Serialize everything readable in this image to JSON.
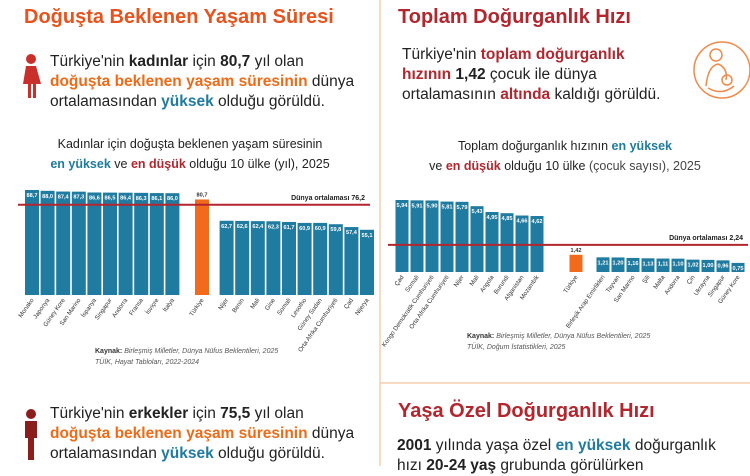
{
  "left": {
    "title": "Doğuşta Beklenen Yaşam Süresi",
    "paragraph": [
      [
        {
          "text": "Türkiye'nin ",
          "style": "plain"
        },
        {
          "text": "kadınlar",
          "style": "bold"
        },
        {
          "text": " için ",
          "style": "plain"
        },
        {
          "text": "80,7",
          "style": "bold"
        },
        {
          "text": " yıl olan",
          "style": "plain"
        }
      ],
      [
        {
          "text": "doğuşta beklenen yaşam süresinin",
          "style": "orange"
        },
        {
          "text": " dünya",
          "style": "plain"
        }
      ],
      [
        {
          "text": "ortalamasından ",
          "style": "plain"
        },
        {
          "text": "yüksek",
          "style": "blue"
        },
        {
          "text": " olduğu görüldü.",
          "style": "plain"
        }
      ]
    ],
    "bottom_paragraph": [
      [
        {
          "text": "Türkiye'nin ",
          "style": "plain"
        },
        {
          "text": "erkekler",
          "style": "bold"
        },
        {
          "text": " için ",
          "style": "plain"
        },
        {
          "text": "75,5",
          "style": "bold"
        },
        {
          "text": " yıl olan",
          "style": "plain"
        }
      ],
      [
        {
          "text": "doğuşta beklenen yaşam süresinin",
          "style": "orange"
        },
        {
          "text": " dünya",
          "style": "plain"
        }
      ],
      [
        {
          "text": "ortalamasından ",
          "style": "plain"
        },
        {
          "text": "yüksek",
          "style": "blue"
        },
        {
          "text": " olduğu görüldü.",
          "style": "plain"
        }
      ]
    ]
  },
  "right": {
    "title": "Toplam Doğurganlık Hızı",
    "paragraph": [
      [
        {
          "text": "Türkiye'nin ",
          "style": "plain"
        },
        {
          "text": "toplam doğurganlık",
          "style": "red"
        }
      ],
      [
        {
          "text": "hızının",
          "style": "red"
        },
        {
          "text": " ",
          "style": "plain"
        },
        {
          "text": "1,42",
          "style": "bold"
        },
        {
          "text": " çocuk ile dünya",
          "style": "plain"
        }
      ],
      [
        {
          "text": "ortalamasının ",
          "style": "plain"
        },
        {
          "text": "altında",
          "style": "red"
        },
        {
          "text": " kaldığı görüldü.",
          "style": "plain"
        }
      ]
    ],
    "bottom_title": "Yaşa Özel Doğurganlık Hızı",
    "bottom_paragraph": [
      [
        {
          "text": "2001",
          "style": "bold"
        },
        {
          "text": " yılında yaşa özel ",
          "style": "plain"
        },
        {
          "text": "en yüksek",
          "style": "blue"
        },
        {
          "text": " doğurganlık",
          "style": "plain"
        }
      ],
      [
        {
          "text": "hızı ",
          "style": "plain"
        },
        {
          "text": "20-24 yaş",
          "style": "bold"
        },
        {
          "text": " grubunda görülürken",
          "style": "plain"
        }
      ]
    ]
  },
  "chart_data": [
    {
      "type": "bar",
      "title_lines": [
        [
          {
            "text": "Kadınlar için doğuşta beklenen yaşam süresinin",
            "style": "plain"
          }
        ],
        [
          {
            "text": "en yüksek",
            "style": "blue"
          },
          {
            "text": " ve ",
            "style": "plain"
          },
          {
            "text": "en düşük",
            "style": "red"
          },
          {
            "text": " olduğu 10 ülke (yıl), 2025",
            "style": "plain"
          }
        ]
      ],
      "categories": [
        "Monako",
        "Japonya",
        "Güney Kore",
        "San Marino",
        "İspanya",
        "Singapur",
        "Andorra",
        "Fransa",
        "İsviçre",
        "İtalya",
        "Türkiye",
        "Nijer",
        "Benin",
        "Mali",
        "Gine",
        "Somali",
        "Lesotho",
        "Güney Sudan",
        "Orta Afrika Cumhuriyeti",
        "Çad",
        "Nijerya"
      ],
      "values": [
        88.7,
        88.0,
        87.4,
        87.3,
        86.6,
        86.5,
        86.4,
        86.3,
        86.1,
        86.0,
        80.7,
        62.7,
        62.6,
        62.4,
        62.3,
        61.7,
        60.9,
        60.9,
        59.8,
        57.4,
        55.1
      ],
      "value_labels": [
        "88,7",
        "88,0",
        "87,4",
        "87,3",
        "86,6",
        "86,5",
        "86,4",
        "86,3",
        "86,1",
        "86,0",
        "80,7",
        "62,7",
        "62,6",
        "62,4",
        "62,3",
        "61,7",
        "60,9",
        "60,9",
        "59,8",
        "57,4",
        "55,1"
      ],
      "color": "#1f7ba0",
      "highlight": "Türkiye",
      "highlight_color": "#f26a1b",
      "reference": {
        "value": 76.2,
        "label": "Dünya ortalaması 76,2",
        "color": "#b3262e"
      },
      "source": {
        "label": "Kaynak:",
        "lines": [
          "Birleşmiş Milletler, Dünya Nüfus Beklentileri, 2025",
          "TÜİK, Hayat Tabloları, 2022-2024"
        ]
      }
    },
    {
      "type": "bar",
      "title_lines": [
        [
          {
            "text": "Toplam doğurganlık hızının ",
            "style": "plain"
          },
          {
            "text": "en yüksek",
            "style": "blue"
          }
        ],
        [
          {
            "text": "ve ",
            "style": "plain"
          },
          {
            "text": "en düşük",
            "style": "red"
          },
          {
            "text": " olduğu 10 ülke ",
            "style": "plain"
          },
          {
            "text": "(çocuk sayısı), 2025",
            "style": "light"
          }
        ]
      ],
      "categories": [
        "Çad",
        "Somali",
        "Kongo Demokratik Cumhuriyeti",
        "Orta Afrika Cumhuriyeti",
        "Nijer",
        "Mali",
        "Angola",
        "Burundi",
        "Afganistan",
        "Mozambik",
        "Türkiye",
        "Birleşik Arap Emirlikleri",
        "Tayvan",
        "San Marino",
        "Şili",
        "Malta",
        "Andorra",
        "Çin",
        "Ukrayna",
        "Singapur",
        "Güney Kore"
      ],
      "values": [
        5.94,
        5.91,
        5.9,
        5.81,
        5.79,
        5.43,
        4.95,
        4.85,
        4.66,
        4.62,
        1.42,
        1.21,
        1.2,
        1.16,
        1.13,
        1.11,
        1.1,
        1.02,
        1.0,
        0.96,
        0.75
      ],
      "value_labels": [
        "5,94",
        "5,91",
        "5,90",
        "5,81",
        "5,79",
        "5,43",
        "4,95",
        "4,85",
        "4,66",
        "4,62",
        "1,42",
        "1,21",
        "1,20",
        "1,16",
        "1,13",
        "1,11",
        "1,10",
        "1,02",
        "1,00",
        "0,96",
        "0,75"
      ],
      "color": "#1f7ba0",
      "highlight": "Türkiye",
      "highlight_color": "#f26a1b",
      "reference": {
        "value": 2.24,
        "label": "Dünya ortalaması 2,24",
        "color": "#b3262e"
      },
      "source": {
        "label": "Kaynak:",
        "lines": [
          "Birleşmiş Milletler, Dünya Nüfus Beklentileri, 2025",
          "TÜİK, Doğum İstatistikleri, 2025"
        ]
      }
    }
  ]
}
